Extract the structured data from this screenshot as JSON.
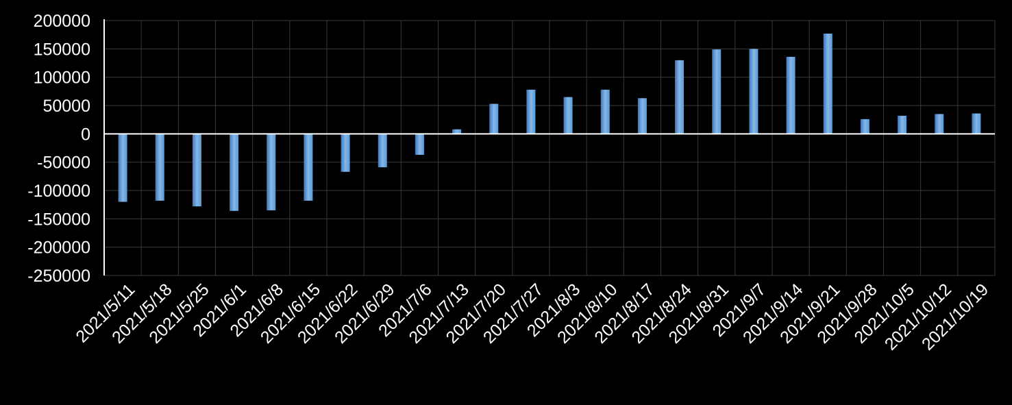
{
  "chart_data": {
    "type": "bar",
    "title": "",
    "xlabel": "",
    "ylabel": "",
    "categories": [
      "2021/5/11",
      "2021/5/18",
      "2021/5/25",
      "2021/6/1",
      "2021/6/8",
      "2021/6/15",
      "2021/6/22",
      "2021/6/29",
      "2021/7/6",
      "2021/7/13",
      "2021/7/20",
      "2021/7/27",
      "2021/8/3",
      "2021/8/10",
      "2021/8/17",
      "2021/8/24",
      "2021/8/31",
      "2021/9/7",
      "2021/9/14",
      "2021/9/21",
      "2021/9/28",
      "2021/10/5",
      "2021/10/12",
      "2021/10/19"
    ],
    "values": [
      -120000,
      -118000,
      -128000,
      -136000,
      -135000,
      -118000,
      -67000,
      -59000,
      -37000,
      8000,
      53000,
      78000,
      65000,
      78000,
      63000,
      130000,
      149000,
      150000,
      136000,
      177000,
      26000,
      32000,
      35000,
      36000
    ],
    "ylim": [
      -250000,
      200000
    ],
    "yticks": [
      "200000",
      "150000",
      "100000",
      "50000",
      "0",
      "-50000",
      "-100000",
      "-150000",
      "-200000",
      "-250000"
    ],
    "grid": true,
    "colors": {
      "bar": "#5b9bd5",
      "bar_light": "#86b6e6",
      "bar_dark": "#3c78c0",
      "grid": "#3a3a3a",
      "axis": "#ffffff",
      "background": "#000000"
    }
  }
}
